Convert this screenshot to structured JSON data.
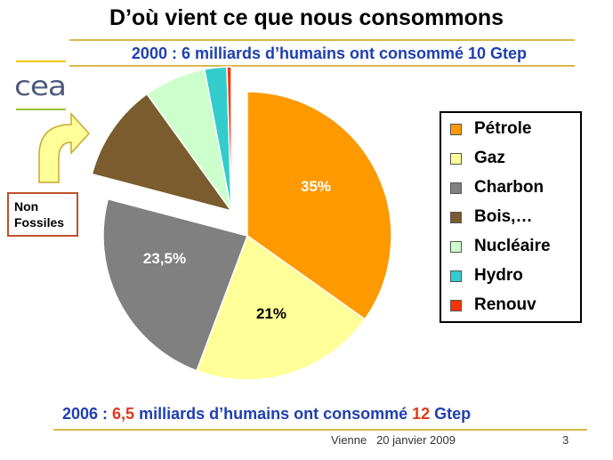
{
  "title": "D’où vient ce que nous consommons",
  "subtitle": "2000 : 6 milliards d’humains ont consommé 10 Gtep",
  "logo_text": "cea",
  "non_fossiles_label": [
    "Non",
    "Fossiles"
  ],
  "bottom": {
    "part1": "2006 : ",
    "part2": "6,5",
    "part3": " milliards d’humains ont consommé ",
    "part4": "12",
    "part5": " Gtep"
  },
  "footer": "Vienne   20 janvier 2009",
  "page_number": "3",
  "chart_data": {
    "type": "pie",
    "exploded": [
      "Bois,…",
      "Nucléaire",
      "Hydro",
      "Renouv"
    ],
    "slices": [
      {
        "label": "Pétrole",
        "value": 35,
        "color": "#ff9900",
        "data_label": "35%"
      },
      {
        "label": "Gaz",
        "value": 21,
        "color": "#ffff99",
        "data_label": "21%"
      },
      {
        "label": "Charbon",
        "value": 23.5,
        "color": "#808080",
        "data_label": "23,5%"
      },
      {
        "label": "Bois,…",
        "value": 11,
        "color": "#7a5c2e",
        "data_label": ""
      },
      {
        "label": "Nucléaire",
        "value": 7,
        "color": "#ccffcc",
        "data_label": ""
      },
      {
        "label": "Hydro",
        "value": 2.5,
        "color": "#33cccc",
        "data_label": ""
      },
      {
        "label": "Renouv",
        "value": 0.5,
        "color": "#ff3300",
        "data_label": ""
      }
    ],
    "legend_position": "right",
    "legend": [
      "Pétrole",
      "Gaz",
      "Charbon",
      "Bois,…",
      "Nucléaire",
      "Hydro",
      "Renouv"
    ]
  }
}
